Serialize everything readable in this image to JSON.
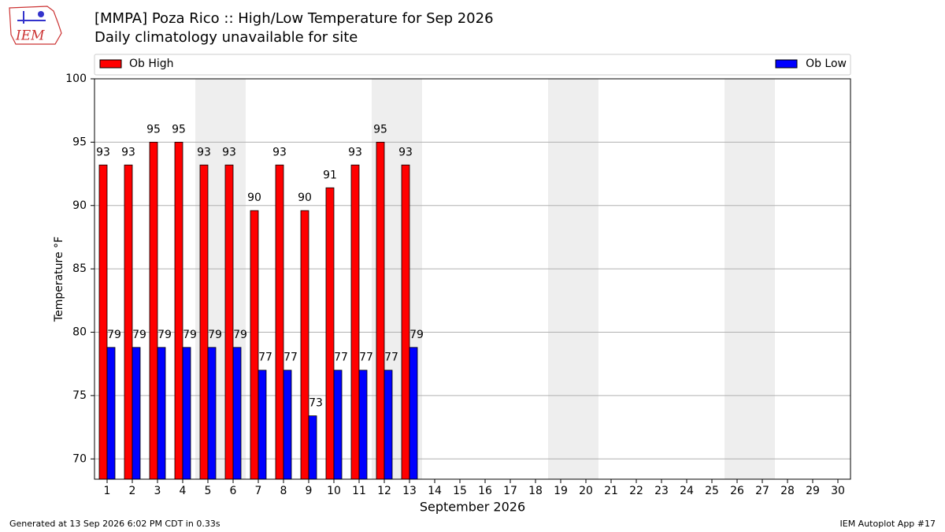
{
  "chart_data": {
    "type": "bar",
    "logo_text": "IEM",
    "title": "[MMPA] Poza Rico :: High/Low Temperature for Sep 2026",
    "subtitle": "Daily climatology unavailable for site",
    "ylabel": "Temperature °F",
    "xlabel": "September 2026",
    "footer_left": "Generated at 13 Sep 2026 6:02 PM CDT in 0.33s",
    "footer_right": "IEM Autoplot App #17",
    "categories": [
      1,
      2,
      3,
      4,
      5,
      6,
      7,
      8,
      9,
      10,
      11,
      12,
      13,
      14,
      15,
      16,
      17,
      18,
      19,
      20,
      21,
      22,
      23,
      24,
      25,
      26,
      27,
      28,
      29,
      30
    ],
    "series": [
      {
        "name": "Ob High",
        "color": "#ff0000",
        "values": [
          93.2,
          93.2,
          95,
          95,
          93.2,
          93.2,
          89.6,
          93.2,
          89.6,
          91.4,
          93.2,
          95,
          93.2,
          null,
          null,
          null,
          null,
          null,
          null,
          null,
          null,
          null,
          null,
          null,
          null,
          null,
          null,
          null,
          null,
          null
        ],
        "value_labels": [
          "93",
          "93",
          "95",
          "95",
          "93",
          "93",
          "90",
          "93",
          "90",
          "91",
          "93",
          "95",
          "93",
          null,
          null,
          null,
          null,
          null,
          null,
          null,
          null,
          null,
          null,
          null,
          null,
          null,
          null,
          null,
          null,
          null
        ]
      },
      {
        "name": "Ob Low",
        "color": "#0000ff",
        "values": [
          78.8,
          78.8,
          78.8,
          78.8,
          78.8,
          78.8,
          77,
          77,
          73.4,
          77,
          77,
          77,
          78.8,
          null,
          null,
          null,
          null,
          null,
          null,
          null,
          null,
          null,
          null,
          null,
          null,
          null,
          null,
          null,
          null,
          null
        ],
        "value_labels": [
          "79",
          "79",
          "79",
          "79",
          "79",
          "79",
          "77",
          "77",
          "73",
          "77",
          "77",
          "77",
          "79",
          null,
          null,
          null,
          null,
          null,
          null,
          null,
          null,
          null,
          null,
          null,
          null,
          null,
          null,
          null,
          null,
          null
        ]
      }
    ],
    "ylim": [
      68.4,
      100
    ],
    "yticks": [
      70,
      75,
      80,
      85,
      90,
      95,
      100
    ],
    "grid": true
  }
}
